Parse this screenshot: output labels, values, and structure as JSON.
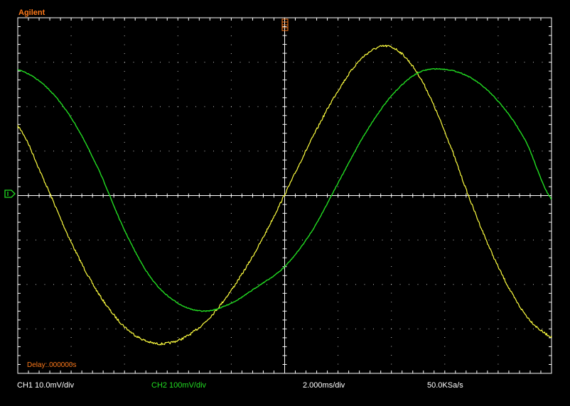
{
  "brand": "Agilent",
  "delay_label": "Delay:.000000s",
  "footer": {
    "ch1": "CH1 10.0mV/div",
    "ch2": "CH2 100mV/div",
    "timebase": "2.000ms/div",
    "sample_rate": "50.0KSa/s"
  },
  "colors": {
    "background": "#000000",
    "graticule": "#ffffff",
    "ch1": "#ffff40",
    "ch2": "#22dd22",
    "brand": "#ff7a1a",
    "delay": "#ff7a1a",
    "footer_text": "#ffffff"
  },
  "icons": {
    "trigger_marker": "trigger-position-marker-icon",
    "ground_marker": "ground-reference-marker-icon"
  },
  "chart_data": {
    "type": "line",
    "grid": true,
    "x_divisions": 10,
    "y_divisions": 8,
    "xlim": [
      -10,
      10
    ],
    "xunit": "ms",
    "series": [
      {
        "name": "CH1 10.0mV/div",
        "color": "#ffff40",
        "unit": "mV",
        "volts_per_div": 10.0,
        "x": [
          -10,
          -9,
          -8,
          -7,
          -6,
          -5,
          -4,
          -3,
          -2,
          -1,
          0,
          1,
          2,
          3,
          4,
          5,
          6,
          7,
          8,
          9,
          10
        ],
        "y": [
          15.6,
          3.2,
          -10.5,
          -21.8,
          -29.5,
          -33.1,
          -32.6,
          -28.6,
          -21.3,
          -11.6,
          0.2,
          12.5,
          23.6,
          31.5,
          33.4,
          27.3,
          14.4,
          -1.8,
          -16.0,
          -26.6,
          -31.8
        ]
      },
      {
        "name": "CH2 100mV/div",
        "color": "#22dd22",
        "unit": "mV",
        "volts_per_div": 100.0,
        "x": [
          -10,
          -9,
          -8,
          -7,
          -6,
          -5,
          -4,
          -3,
          -2,
          -1,
          0,
          1,
          2,
          3,
          4,
          5,
          6,
          7,
          8,
          9,
          10
        ],
        "y": [
          283,
          248,
          175,
          62,
          -78,
          -186,
          -242,
          -260,
          -242,
          -204,
          -160,
          -82,
          28,
          138,
          224,
          276,
          284,
          264,
          212,
          126,
          -8
        ]
      }
    ]
  }
}
